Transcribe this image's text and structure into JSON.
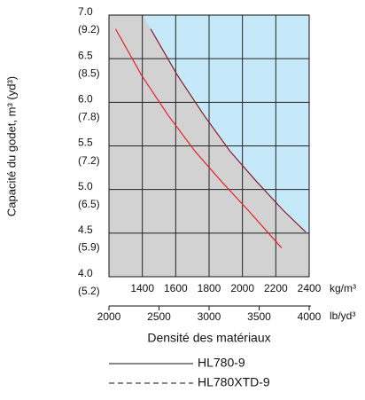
{
  "chart_data": {
    "type": "line",
    "y_label": "Capacité du godet, m³ (yd³)",
    "x_label": "Densité des matériaux",
    "x_unit": "kg/m³",
    "x2_unit": "lb/yd³",
    "xlim": [
      1200,
      2400
    ],
    "xticks": [
      1400,
      1600,
      1800,
      2000,
      2200,
      2400
    ],
    "x2lim": [
      2000,
      4000
    ],
    "x2ticks": [
      2000,
      2500,
      3000,
      3500,
      4000
    ],
    "ylim": [
      4,
      7
    ],
    "yticks": [
      {
        "value": 4,
        "label": "4.0"
      },
      {
        "value": 4.5,
        "label": "4.5"
      },
      {
        "value": 5,
        "label": "5.0"
      },
      {
        "value": 5.5,
        "label": "5.5"
      },
      {
        "value": 6,
        "label": "6.0"
      },
      {
        "value": 6.5,
        "label": "6.5"
      },
      {
        "value": 7,
        "label": "7.0"
      }
    ],
    "y2lim": [
      5.23,
      9.16
    ],
    "y2ticks": [
      {
        "value": 5.23,
        "label": "(5.2)"
      },
      {
        "value": 5.89,
        "label": "(5.9)"
      },
      {
        "value": 6.54,
        "label": "(6.5)"
      },
      {
        "value": 7.19,
        "label": "(7.2)"
      },
      {
        "value": 7.85,
        "label": "(7.8)"
      },
      {
        "value": 8.5,
        "label": "(8.5)"
      },
      {
        "value": 9.16,
        "label": "(9.2)"
      }
    ],
    "grid": true,
    "series": [
      {
        "name": "HL780-9",
        "color": "#e8202a",
        "linestyle": "solid",
        "x": [
          1240,
          1395,
          1555,
          1715,
          1875,
          2035,
          2235
        ],
        "values": [
          6.84,
          6.31,
          5.85,
          5.44,
          5.09,
          4.76,
          4.33
        ]
      },
      {
        "name": "HL780XTD-9",
        "color": "#8b1a2b",
        "linestyle": "dashed",
        "x": [
          1450,
          1610,
          1770,
          1925,
          2085,
          2245,
          2380
        ],
        "values": [
          6.84,
          6.31,
          5.85,
          5.44,
          5.09,
          4.76,
          4.51
        ]
      }
    ]
  }
}
